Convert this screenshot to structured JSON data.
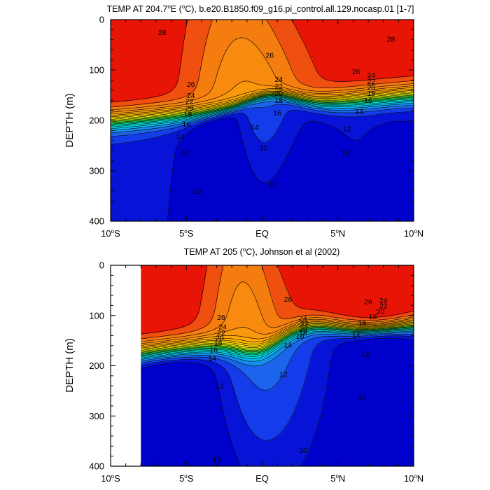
{
  "chart_data": [
    {
      "type": "contour",
      "title": "TEMP AT 204.7°E (°C), b.e20.B1850.f09_g16.pi_control.all.129.nocasp.01 [1-7]",
      "title_parts": {
        "pre": "TEMP AT 204.7",
        "deg": "o",
        "mid": "E (",
        "deg2": "o",
        "post": "C), b.e20.B1850.f09_g16.pi_control.all.129.nocasp.01 [1-7]"
      },
      "ylabel": "DEPTH (m)",
      "xlim": [
        -10,
        10
      ],
      "ylim": [
        400,
        0
      ],
      "x_ticks": [
        {
          "value": -10,
          "num": "10",
          "hemi": "S"
        },
        {
          "value": -5,
          "num": "5",
          "hemi": "S"
        },
        {
          "value": 0,
          "num": "EQ",
          "hemi": ""
        },
        {
          "value": 5,
          "num": "5",
          "hemi": "N"
        },
        {
          "value": 10,
          "num": "10",
          "hemi": "N"
        }
      ],
      "y_ticks": [
        "0",
        "100",
        "200",
        "300",
        "400"
      ],
      "contour_interval": 1,
      "levels_range": [
        8,
        29
      ],
      "data_xmin": -10,
      "contour_labels": [
        {
          "text": "28",
          "x": -6.6,
          "y": 25
        },
        {
          "text": "28",
          "x": 8.5,
          "y": 38
        },
        {
          "text": "26",
          "x": 0.5,
          "y": 70
        },
        {
          "text": "26",
          "x": 6.2,
          "y": 103
        },
        {
          "text": "26",
          "x": -4.7,
          "y": 128
        },
        {
          "text": "24",
          "x": -4.7,
          "y": 150
        },
        {
          "text": "22",
          "x": -4.8,
          "y": 162
        },
        {
          "text": "20",
          "x": -4.8,
          "y": 175
        },
        {
          "text": "18",
          "x": -4.9,
          "y": 187
        },
        {
          "text": "16",
          "x": -5.0,
          "y": 207
        },
        {
          "text": "14",
          "x": -5.4,
          "y": 232
        },
        {
          "text": "12",
          "x": -5.1,
          "y": 262
        },
        {
          "text": "10",
          "x": -4.3,
          "y": 340
        },
        {
          "text": "24",
          "x": 1.1,
          "y": 118
        },
        {
          "text": "22",
          "x": 1.1,
          "y": 132
        },
        {
          "text": "20",
          "x": 1.1,
          "y": 146
        },
        {
          "text": "18",
          "x": 1.1,
          "y": 160
        },
        {
          "text": "16",
          "x": 1.0,
          "y": 184
        },
        {
          "text": "14",
          "x": -0.5,
          "y": 213
        },
        {
          "text": "12",
          "x": 0.1,
          "y": 254
        },
        {
          "text": "10",
          "x": 0.7,
          "y": 326
        },
        {
          "text": "24",
          "x": 7.2,
          "y": 110
        },
        {
          "text": "22",
          "x": 7.2,
          "y": 122
        },
        {
          "text": "20",
          "x": 7.2,
          "y": 134
        },
        {
          "text": "18",
          "x": 7.2,
          "y": 146
        },
        {
          "text": "16",
          "x": 7.0,
          "y": 160
        },
        {
          "text": "14",
          "x": 6.4,
          "y": 182
        },
        {
          "text": "12",
          "x": 5.6,
          "y": 216
        },
        {
          "text": "10",
          "x": 5.5,
          "y": 264
        }
      ]
    },
    {
      "type": "contour",
      "title": "TEMP AT 205 (°C), Johnson et al (2002)",
      "title_parts": {
        "pre": "TEMP AT 205 (",
        "deg": "o",
        "post": "C), Johnson et al (2002)"
      },
      "ylabel": "DEPTH (m)",
      "xlim": [
        -10,
        10
      ],
      "ylim": [
        400,
        0
      ],
      "x_ticks": [
        {
          "value": -10,
          "num": "10",
          "hemi": "S"
        },
        {
          "value": -5,
          "num": "5",
          "hemi": "S"
        },
        {
          "value": 0,
          "num": "EQ",
          "hemi": ""
        },
        {
          "value": 5,
          "num": "5",
          "hemi": "N"
        },
        {
          "value": 10,
          "num": "10",
          "hemi": "N"
        }
      ],
      "y_ticks": [
        "0",
        "100",
        "200",
        "300",
        "400"
      ],
      "contour_interval": 1,
      "levels_range": [
        8,
        29
      ],
      "data_xmin": -8,
      "contour_labels": [
        {
          "text": "26",
          "x": 1.7,
          "y": 67
        },
        {
          "text": "26",
          "x": -2.7,
          "y": 103
        },
        {
          "text": "26",
          "x": 7.0,
          "y": 72
        },
        {
          "text": "24",
          "x": -2.6,
          "y": 122
        },
        {
          "text": "22",
          "x": -2.7,
          "y": 134
        },
        {
          "text": "20",
          "x": -2.8,
          "y": 144
        },
        {
          "text": "18",
          "x": -2.9,
          "y": 154
        },
        {
          "text": "16",
          "x": -3.2,
          "y": 168
        },
        {
          "text": "14",
          "x": -3.3,
          "y": 185
        },
        {
          "text": "24",
          "x": 2.7,
          "y": 105
        },
        {
          "text": "22",
          "x": 2.8,
          "y": 116
        },
        {
          "text": "20",
          "x": 2.7,
          "y": 126
        },
        {
          "text": "18",
          "x": 2.7,
          "y": 134
        },
        {
          "text": "16",
          "x": 2.5,
          "y": 141
        },
        {
          "text": "14",
          "x": 1.7,
          "y": 158
        },
        {
          "text": "12",
          "x": 1.4,
          "y": 217
        },
        {
          "text": "24",
          "x": 8.0,
          "y": 70
        },
        {
          "text": "22",
          "x": 8.0,
          "y": 80
        },
        {
          "text": "20",
          "x": 7.8,
          "y": 92
        },
        {
          "text": "18",
          "x": 7.3,
          "y": 102
        },
        {
          "text": "16",
          "x": 6.6,
          "y": 114
        },
        {
          "text": "14",
          "x": 6.2,
          "y": 138
        },
        {
          "text": "12",
          "x": 6.8,
          "y": 176
        },
        {
          "text": "12",
          "x": -2.8,
          "y": 240
        },
        {
          "text": "10",
          "x": 2.7,
          "y": 368
        },
        {
          "text": "10",
          "x": 6.6,
          "y": 262
        },
        {
          "text": "10",
          "x": -3.0,
          "y": 386
        }
      ]
    }
  ]
}
